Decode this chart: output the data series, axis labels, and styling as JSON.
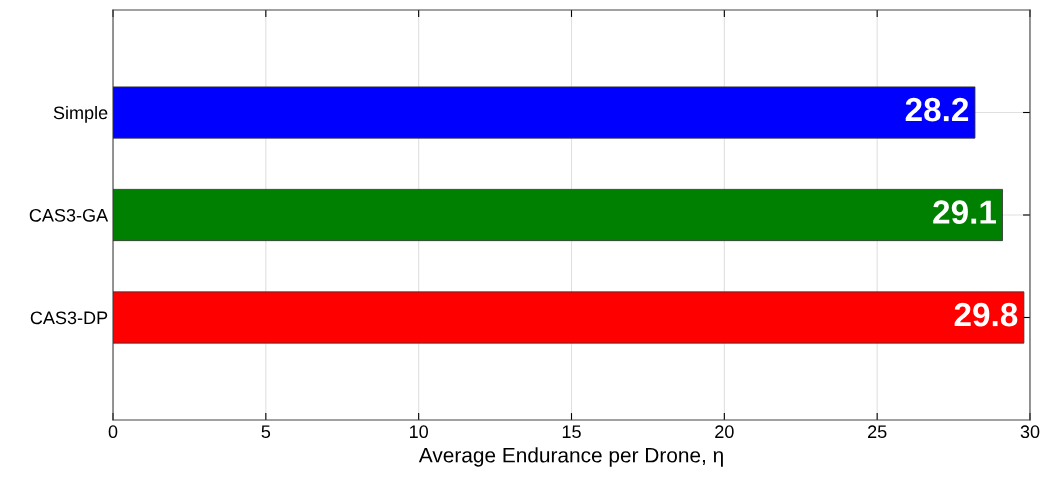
{
  "chart_data": {
    "type": "bar",
    "orientation": "horizontal",
    "xlabel": "Average Endurance per Drone, η",
    "categories": [
      "Simple",
      "CAS3-GA",
      "CAS3-DP"
    ],
    "values": [
      28.2,
      29.1,
      29.8
    ],
    "colors": [
      "#0000ff",
      "#008000",
      "#ff0000"
    ],
    "xlim": [
      0,
      30
    ],
    "xticks": [
      0,
      5,
      10,
      15,
      20,
      25,
      30
    ],
    "grid": true,
    "data_labels": true
  }
}
